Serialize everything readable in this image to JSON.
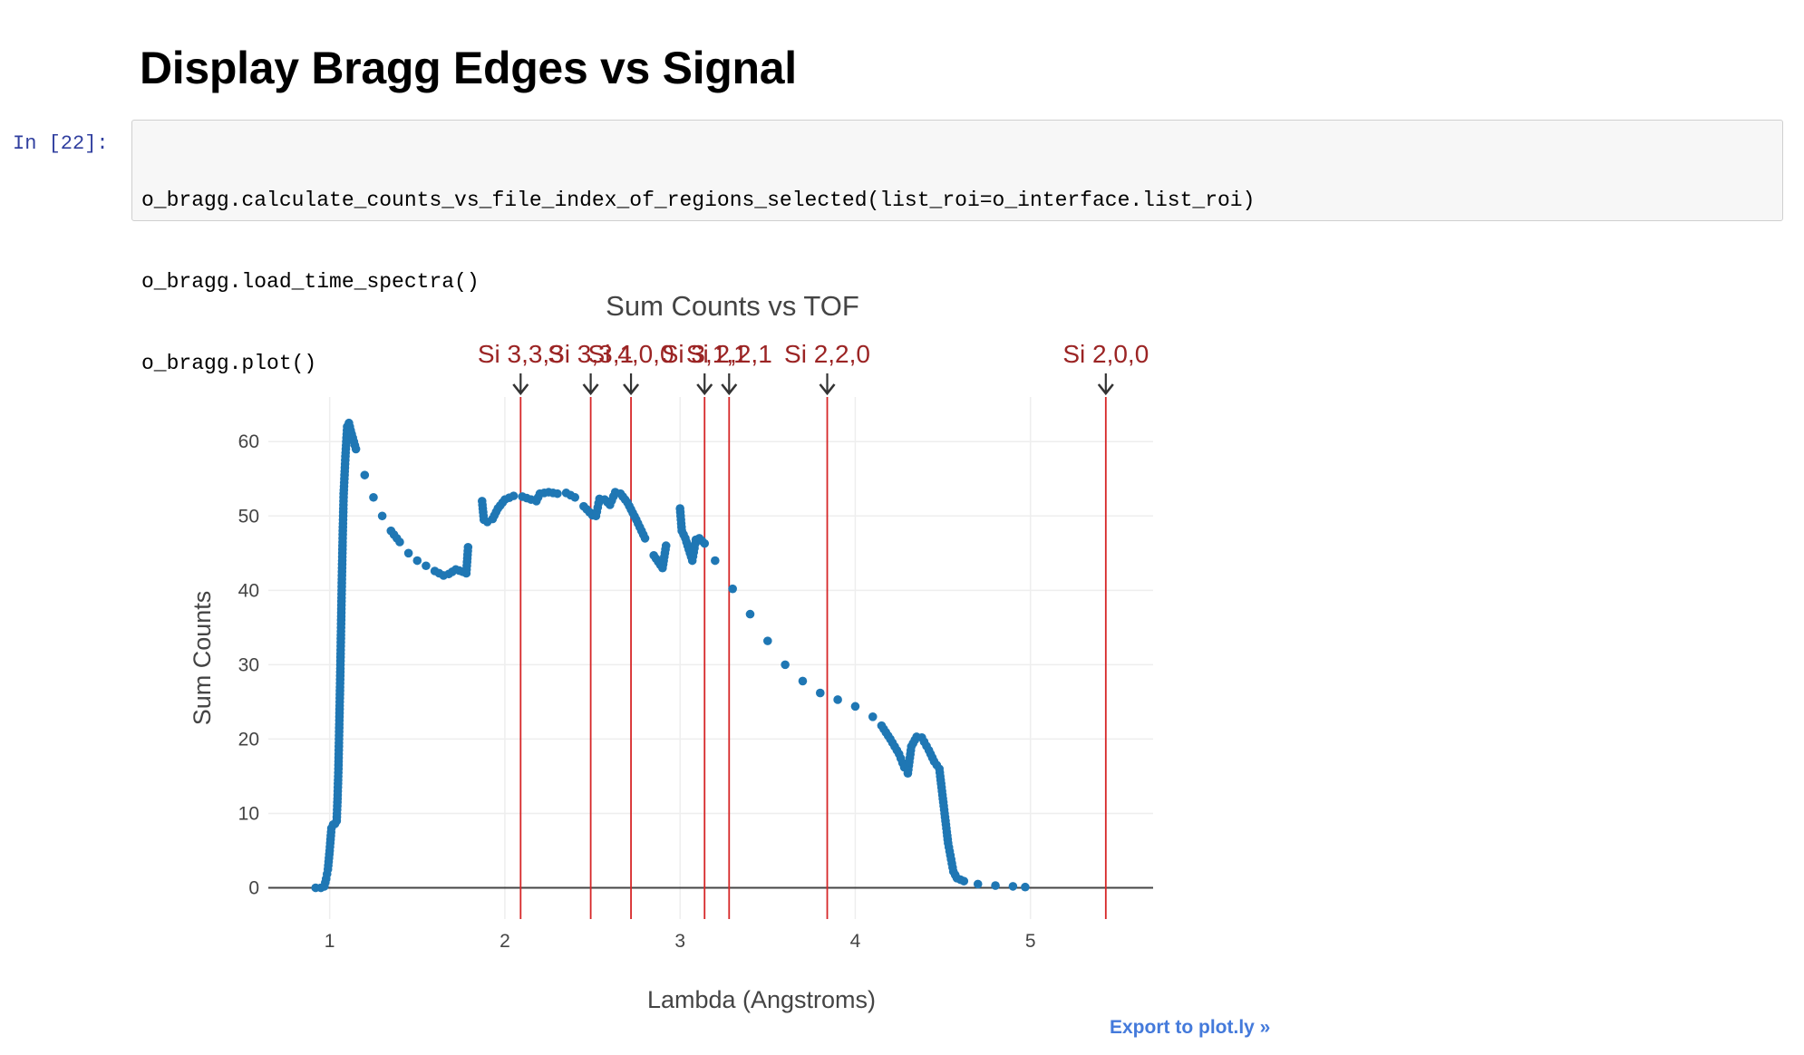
{
  "notebook": {
    "heading": "Display Bragg Edges vs Signal",
    "prompt": "In [22]:",
    "code_lines": [
      "o_bragg.calculate_counts_vs_file_index_of_regions_selected(list_roi=o_interface.list_roi)",
      "o_bragg.load_time_spectra()",
      "o_bragg.plot()"
    ],
    "export_link": "Export to plot.ly »"
  },
  "colors": {
    "marker": "#1f77b4",
    "edge_line": "#d62728",
    "annotation_text": "#9b2424",
    "grid": "#eeeeee",
    "zero_line": "#444444",
    "link": "#447adb"
  },
  "chart_data": {
    "type": "scatter",
    "title": "Sum Counts vs TOF",
    "xlabel": "Lambda (Angstroms)",
    "ylabel": "Sum Counts",
    "xlim": [
      0.65,
      5.7
    ],
    "ylim": [
      -4.2,
      66
    ],
    "xticks": [
      1,
      2,
      3,
      4,
      5
    ],
    "yticks": [
      0,
      10,
      20,
      30,
      40,
      50,
      60
    ],
    "grid": true,
    "series": [
      {
        "name": "",
        "points": [
          [
            0.92,
            0
          ],
          [
            0.95,
            0
          ],
          [
            0.97,
            0.2
          ],
          [
            0.98,
            1.2
          ],
          [
            0.99,
            2.5
          ],
          [
            1.0,
            5
          ],
          [
            1.01,
            8
          ],
          [
            1.02,
            8.5
          ],
          [
            1.03,
            8.6
          ],
          [
            1.04,
            9
          ],
          [
            1.045,
            12
          ],
          [
            1.05,
            16
          ],
          [
            1.055,
            22
          ],
          [
            1.06,
            28
          ],
          [
            1.065,
            35
          ],
          [
            1.07,
            42
          ],
          [
            1.075,
            48
          ],
          [
            1.08,
            53
          ],
          [
            1.09,
            58
          ],
          [
            1.1,
            62
          ],
          [
            1.11,
            62.5
          ],
          [
            1.12,
            61.5
          ],
          [
            1.15,
            59
          ],
          [
            1.2,
            55.5
          ],
          [
            1.25,
            52.5
          ],
          [
            1.3,
            50
          ],
          [
            1.35,
            48
          ],
          [
            1.4,
            46.5
          ],
          [
            1.45,
            45
          ],
          [
            1.5,
            44
          ],
          [
            1.55,
            43.3
          ],
          [
            1.6,
            42.6
          ],
          [
            1.65,
            42
          ],
          [
            1.68,
            42.2
          ],
          [
            1.72,
            42.8
          ],
          [
            1.76,
            42.5
          ],
          [
            1.78,
            42.3
          ],
          [
            1.79,
            45.8
          ],
          [
            1.87,
            52
          ],
          [
            1.88,
            49.5
          ],
          [
            1.9,
            49.2
          ],
          [
            1.93,
            49.6
          ],
          [
            1.96,
            51
          ],
          [
            2.0,
            52.2
          ],
          [
            2.05,
            52.7
          ],
          [
            2.1,
            52.6
          ],
          [
            2.15,
            52.2
          ],
          [
            2.18,
            52
          ],
          [
            2.2,
            53
          ],
          [
            2.25,
            53.2
          ],
          [
            2.3,
            53
          ],
          [
            2.35,
            53.1
          ],
          [
            2.4,
            52.5
          ],
          [
            2.45,
            51.3
          ],
          [
            2.5,
            50.1
          ],
          [
            2.52,
            50
          ],
          [
            2.54,
            52.3
          ],
          [
            2.57,
            52.2
          ],
          [
            2.6,
            51.5
          ],
          [
            2.63,
            53.2
          ],
          [
            2.66,
            53
          ],
          [
            2.7,
            51.8
          ],
          [
            2.75,
            49.5
          ],
          [
            2.8,
            47
          ],
          [
            2.85,
            44.7
          ],
          [
            2.9,
            43
          ],
          [
            2.92,
            46
          ],
          [
            3.0,
            51
          ],
          [
            3.01,
            48
          ],
          [
            3.03,
            47
          ],
          [
            3.05,
            45.5
          ],
          [
            3.07,
            44
          ],
          [
            3.09,
            46.8
          ],
          [
            3.11,
            47
          ],
          [
            3.14,
            46.3
          ],
          [
            3.2,
            44
          ],
          [
            3.3,
            40.2
          ],
          [
            3.4,
            36.8
          ],
          [
            3.5,
            33.2
          ],
          [
            3.6,
            30
          ],
          [
            3.7,
            27.8
          ],
          [
            3.8,
            26.2
          ],
          [
            3.9,
            25.3
          ],
          [
            4.0,
            24.4
          ],
          [
            4.1,
            23
          ],
          [
            4.15,
            21.8
          ],
          [
            4.2,
            20
          ],
          [
            4.25,
            18
          ],
          [
            4.28,
            16.2
          ],
          [
            4.3,
            15.4
          ],
          [
            4.32,
            19
          ],
          [
            4.35,
            20.3
          ],
          [
            4.38,
            20.2
          ],
          [
            4.42,
            18.5
          ],
          [
            4.45,
            17
          ],
          [
            4.48,
            16
          ],
          [
            4.5,
            12
          ],
          [
            4.53,
            6
          ],
          [
            4.56,
            2.2
          ],
          [
            4.58,
            1.3
          ],
          [
            4.62,
            0.9
          ],
          [
            4.7,
            0.5
          ],
          [
            4.8,
            0.3
          ],
          [
            4.9,
            0.2
          ],
          [
            4.97,
            0.1
          ]
        ]
      }
    ],
    "bragg_edges": [
      {
        "label": "Si 3,3,3",
        "x": 2.09
      },
      {
        "label": "Si 3,3,1",
        "x": 2.49
      },
      {
        "label": "Si 4,0,0",
        "x": 2.72
      },
      {
        "label": "Si 3,1,1",
        "x": 3.14
      },
      {
        "label": "Si 2,2,1",
        "x": 3.28
      },
      {
        "label": "Si 2,2,0",
        "x": 3.84
      },
      {
        "label": "Si 2,0,0",
        "x": 5.43
      }
    ]
  }
}
